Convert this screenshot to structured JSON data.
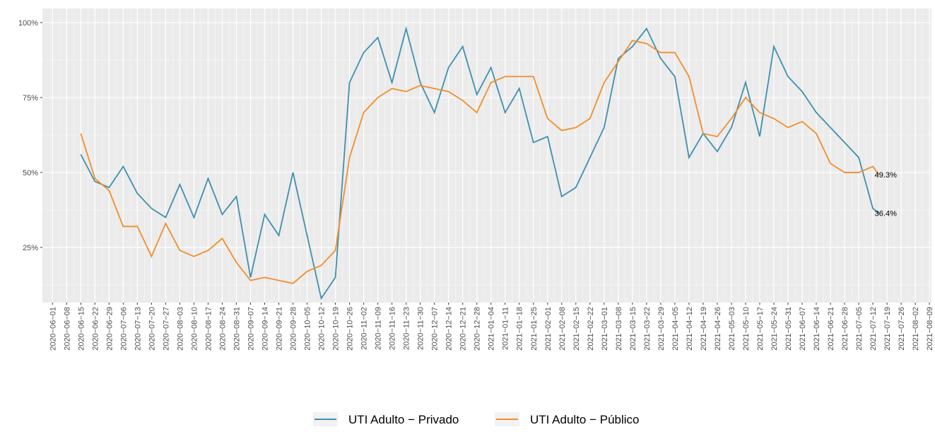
{
  "chart_data": {
    "type": "line",
    "x": [
      "2020-06-15",
      "2020-06-22",
      "2020-06-29",
      "2020-07-06",
      "2020-07-13",
      "2020-07-20",
      "2020-07-27",
      "2020-08-03",
      "2020-08-10",
      "2020-08-17",
      "2020-08-24",
      "2020-08-31",
      "2020-09-07",
      "2020-09-14",
      "2020-09-21",
      "2020-09-28",
      "2020-10-05",
      "2020-10-12",
      "2020-10-19",
      "2020-10-26",
      "2020-11-02",
      "2020-11-09",
      "2020-11-16",
      "2020-11-23",
      "2020-11-30",
      "2020-12-07",
      "2020-12-14",
      "2020-12-21",
      "2020-12-28",
      "2021-01-04",
      "2021-01-11",
      "2021-01-18",
      "2021-01-25",
      "2021-02-01",
      "2021-02-08",
      "2021-02-15",
      "2021-02-22",
      "2021-03-01",
      "2021-03-08",
      "2021-03-15",
      "2021-03-22",
      "2021-03-29",
      "2021-04-05",
      "2021-04-12",
      "2021-04-19",
      "2021-04-26",
      "2021-05-03",
      "2021-05-10",
      "2021-05-17",
      "2021-05-24",
      "2021-05-31",
      "2021-06-07",
      "2021-06-14",
      "2021-06-21",
      "2021-06-28",
      "2021-07-05",
      "2021-07-12",
      "2021-07-15"
    ],
    "series": [
      {
        "name": "UTI Adulto − Privado",
        "color": "#3f8fae",
        "values": [
          56,
          47,
          45,
          52,
          43,
          38,
          35,
          46,
          35,
          48,
          36,
          42,
          15,
          36,
          29,
          50,
          29,
          8,
          15,
          80,
          90,
          95,
          80,
          98,
          80,
          70,
          85,
          92,
          76,
          85,
          70,
          78,
          60,
          62,
          42,
          45,
          55,
          65,
          88,
          92,
          98,
          88,
          82,
          55,
          63,
          57,
          65,
          80,
          62,
          92,
          82,
          77,
          70,
          65,
          60,
          55,
          38,
          36.4
        ],
        "value_labels": [
          null,
          null,
          null,
          null,
          null,
          null,
          null,
          null,
          null,
          null,
          null,
          null,
          null,
          null,
          null,
          null,
          null,
          null,
          null,
          null,
          null,
          null,
          null,
          null,
          null,
          null,
          null,
          null,
          null,
          null,
          null,
          null,
          null,
          null,
          null,
          null,
          null,
          null,
          null,
          null,
          null,
          null,
          null,
          null,
          null,
          null,
          null,
          null,
          null,
          null,
          null,
          null,
          null,
          null,
          null,
          null,
          null,
          "36.4%"
        ]
      },
      {
        "name": "UTI Adulto − Público",
        "color": "#f28e2b",
        "values": [
          63,
          48,
          44,
          32,
          32,
          22,
          33,
          24,
          22,
          24,
          28,
          20,
          14,
          15,
          14,
          13,
          17,
          19,
          24,
          55,
          70,
          75,
          78,
          77,
          79,
          78,
          77,
          74,
          70,
          80,
          82,
          82,
          82,
          68,
          64,
          65,
          68,
          80,
          87,
          94,
          93,
          90,
          90,
          82,
          63,
          62,
          68,
          75,
          70,
          68,
          65,
          67,
          63,
          53,
          50,
          50,
          52,
          49.3
        ],
        "value_labels": [
          null,
          null,
          null,
          null,
          null,
          null,
          null,
          null,
          null,
          null,
          null,
          null,
          null,
          null,
          null,
          null,
          null,
          null,
          null,
          null,
          null,
          null,
          null,
          null,
          null,
          null,
          null,
          null,
          null,
          null,
          null,
          null,
          null,
          null,
          null,
          null,
          null,
          null,
          null,
          null,
          null,
          null,
          null,
          null,
          null,
          null,
          null,
          null,
          null,
          null,
          null,
          null,
          null,
          null,
          null,
          null,
          null,
          "49.3%"
        ]
      }
    ],
    "xlim": [
      "2020-05-27",
      "2021-08-10"
    ],
    "xticks": [
      {
        "value": "2020-06-01",
        "label": "2020−06−01"
      },
      {
        "value": "2020-06-08",
        "label": "2020−06−08"
      },
      {
        "value": "2020-06-15",
        "label": "2020−06−15"
      },
      {
        "value": "2020-06-22",
        "label": "2020−06−22"
      },
      {
        "value": "2020-06-29",
        "label": "2020−06−29"
      },
      {
        "value": "2020-07-06",
        "label": "2020−07−06"
      },
      {
        "value": "2020-07-13",
        "label": "2020−07−13"
      },
      {
        "value": "2020-07-20",
        "label": "2020−07−20"
      },
      {
        "value": "2020-07-27",
        "label": "2020−07−27"
      },
      {
        "value": "2020-08-03",
        "label": "2020−08−03"
      },
      {
        "value": "2020-08-10",
        "label": "2020−08−10"
      },
      {
        "value": "2020-08-17",
        "label": "2020−08−17"
      },
      {
        "value": "2020-08-24",
        "label": "2020−08−24"
      },
      {
        "value": "2020-08-31",
        "label": "2020−08−31"
      },
      {
        "value": "2020-09-07",
        "label": "2020−09−07"
      },
      {
        "value": "2020-09-14",
        "label": "2020−09−14"
      },
      {
        "value": "2020-09-21",
        "label": "2020−09−21"
      },
      {
        "value": "2020-09-28",
        "label": "2020−09−28"
      },
      {
        "value": "2020-10-05",
        "label": "2020−10−05"
      },
      {
        "value": "2020-10-12",
        "label": "2020−10−12"
      },
      {
        "value": "2020-10-19",
        "label": "2020−10−19"
      },
      {
        "value": "2020-10-26",
        "label": "2020−10−26"
      },
      {
        "value": "2020-11-02",
        "label": "2020−11−02"
      },
      {
        "value": "2020-11-09",
        "label": "2020−11−09"
      },
      {
        "value": "2020-11-16",
        "label": "2020−11−16"
      },
      {
        "value": "2020-11-23",
        "label": "2020−11−23"
      },
      {
        "value": "2020-11-30",
        "label": "2020−11−30"
      },
      {
        "value": "2020-12-07",
        "label": "2020−12−07"
      },
      {
        "value": "2020-12-14",
        "label": "2020−12−14"
      },
      {
        "value": "2020-12-21",
        "label": "2020−12−21"
      },
      {
        "value": "2020-12-28",
        "label": "2020−12−28"
      },
      {
        "value": "2021-01-04",
        "label": "2021−01−04"
      },
      {
        "value": "2021-01-11",
        "label": "2021−01−11"
      },
      {
        "value": "2021-01-18",
        "label": "2021−01−18"
      },
      {
        "value": "2021-01-25",
        "label": "2021−01−25"
      },
      {
        "value": "2021-02-01",
        "label": "2021−02−01"
      },
      {
        "value": "2021-02-08",
        "label": "2021−02−08"
      },
      {
        "value": "2021-02-15",
        "label": "2021−02−15"
      },
      {
        "value": "2021-02-22",
        "label": "2021−02−22"
      },
      {
        "value": "2021-03-01",
        "label": "2021−03−01"
      },
      {
        "value": "2021-03-08",
        "label": "2021−03−08"
      },
      {
        "value": "2021-03-15",
        "label": "2021−03−15"
      },
      {
        "value": "2021-03-22",
        "label": "2021−03−22"
      },
      {
        "value": "2021-03-29",
        "label": "2021−03−29"
      },
      {
        "value": "2021-04-05",
        "label": "2021−04−05"
      },
      {
        "value": "2021-04-12",
        "label": "2021−04−12"
      },
      {
        "value": "2021-04-19",
        "label": "2021−04−19"
      },
      {
        "value": "2021-04-26",
        "label": "2021−04−26"
      },
      {
        "value": "2021-05-03",
        "label": "2021−05−03"
      },
      {
        "value": "2021-05-10",
        "label": "2021−05−10"
      },
      {
        "value": "2021-05-17",
        "label": "2021−05−17"
      },
      {
        "value": "2021-05-24",
        "label": "2021−05−24"
      },
      {
        "value": "2021-05-31",
        "label": "2021−05−31"
      },
      {
        "value": "2021-06-07",
        "label": "2021−06−07"
      },
      {
        "value": "2021-06-14",
        "label": "2021−06−14"
      },
      {
        "value": "2021-06-21",
        "label": "2021−06−21"
      },
      {
        "value": "2021-06-28",
        "label": "2021−06−28"
      },
      {
        "value": "2021-07-05",
        "label": "2021−07−05"
      },
      {
        "value": "2021-07-12",
        "label": "2021−07−12"
      },
      {
        "value": "2021-07-19",
        "label": "2021−07−19"
      },
      {
        "value": "2021-07-26",
        "label": "2021−07−26"
      },
      {
        "value": "2021-08-02",
        "label": "2021−08−02"
      },
      {
        "value": "2021-08-09",
        "label": "2021−08−09"
      }
    ],
    "ylim": [
      6.6,
      104.7
    ],
    "yticks": [
      {
        "value": 25,
        "label": "25%"
      },
      {
        "value": 50,
        "label": "50%"
      },
      {
        "value": 75,
        "label": "75%"
      },
      {
        "value": 100,
        "label": "100%"
      }
    ],
    "grid": true,
    "legend": "bottom"
  }
}
